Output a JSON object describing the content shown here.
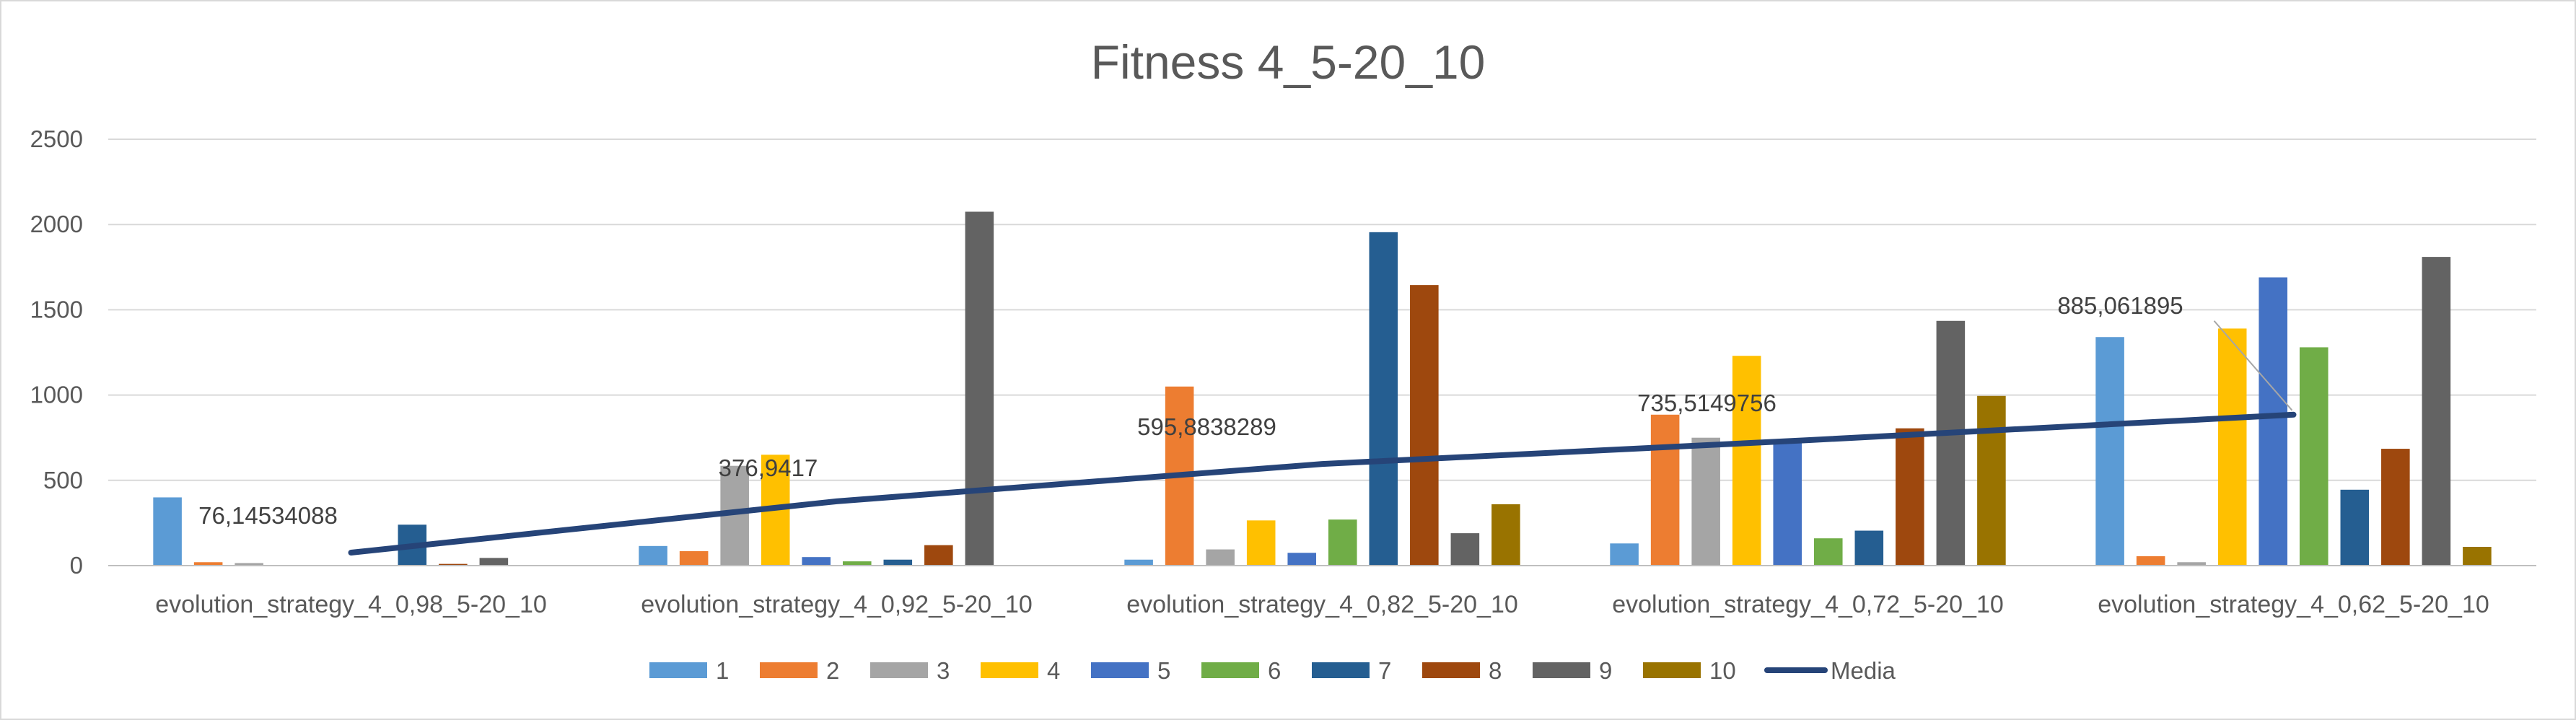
{
  "chart_data": {
    "type": "bar",
    "title": "Fitness 4_5-20_10",
    "xlabel": "",
    "ylabel": "",
    "ylim": [
      0,
      2500
    ],
    "yticks": [
      0,
      500,
      1000,
      1500,
      2000,
      2500
    ],
    "grid": true,
    "legend_position": "bottom",
    "categories": [
      "evolution_strategy_4_0,98_5-20_10",
      "evolution_strategy_4_0,92_5-20_10",
      "evolution_strategy_4_0,82_5-20_10",
      "evolution_strategy_4_0,72_5-20_10",
      "evolution_strategy_4_0,62_5-20_10"
    ],
    "series": [
      {
        "name": "1",
        "color": "#5B9BD5",
        "values": [
          400,
          115,
          35,
          130,
          1340
        ]
      },
      {
        "name": "2",
        "color": "#ED7D31",
        "values": [
          20,
          85,
          1050,
          885,
          55
        ]
      },
      {
        "name": "3",
        "color": "#A5A5A5",
        "values": [
          15,
          585,
          95,
          750,
          20
        ]
      },
      {
        "name": "4",
        "color": "#FFC000",
        "values": [
          0,
          650,
          265,
          1230,
          1390
        ]
      },
      {
        "name": "5",
        "color": "#4472C4",
        "values": [
          0,
          50,
          75,
          730,
          1690
        ]
      },
      {
        "name": "6",
        "color": "#70AD47",
        "values": [
          0,
          25,
          270,
          160,
          1280
        ]
      },
      {
        "name": "7",
        "color": "#255E91",
        "values": [
          240,
          35,
          1955,
          205,
          445
        ]
      },
      {
        "name": "8",
        "color": "#9E480E",
        "values": [
          10,
          120,
          1645,
          805,
          685
        ]
      },
      {
        "name": "9",
        "color": "#636363",
        "values": [
          45,
          2075,
          190,
          1435,
          1810
        ]
      },
      {
        "name": "10",
        "color": "#997300",
        "values": [
          0,
          0,
          360,
          995,
          110
        ]
      }
    ],
    "line_series": {
      "name": "Media",
      "color": "#264478",
      "values": [
        76.14534088,
        376.9417,
        595.8838289,
        735.5149756,
        885.061895
      ],
      "labels": [
        "76,14534088",
        "376,9417",
        "595,8838289",
        "735,5149756",
        "885,061895"
      ]
    }
  }
}
